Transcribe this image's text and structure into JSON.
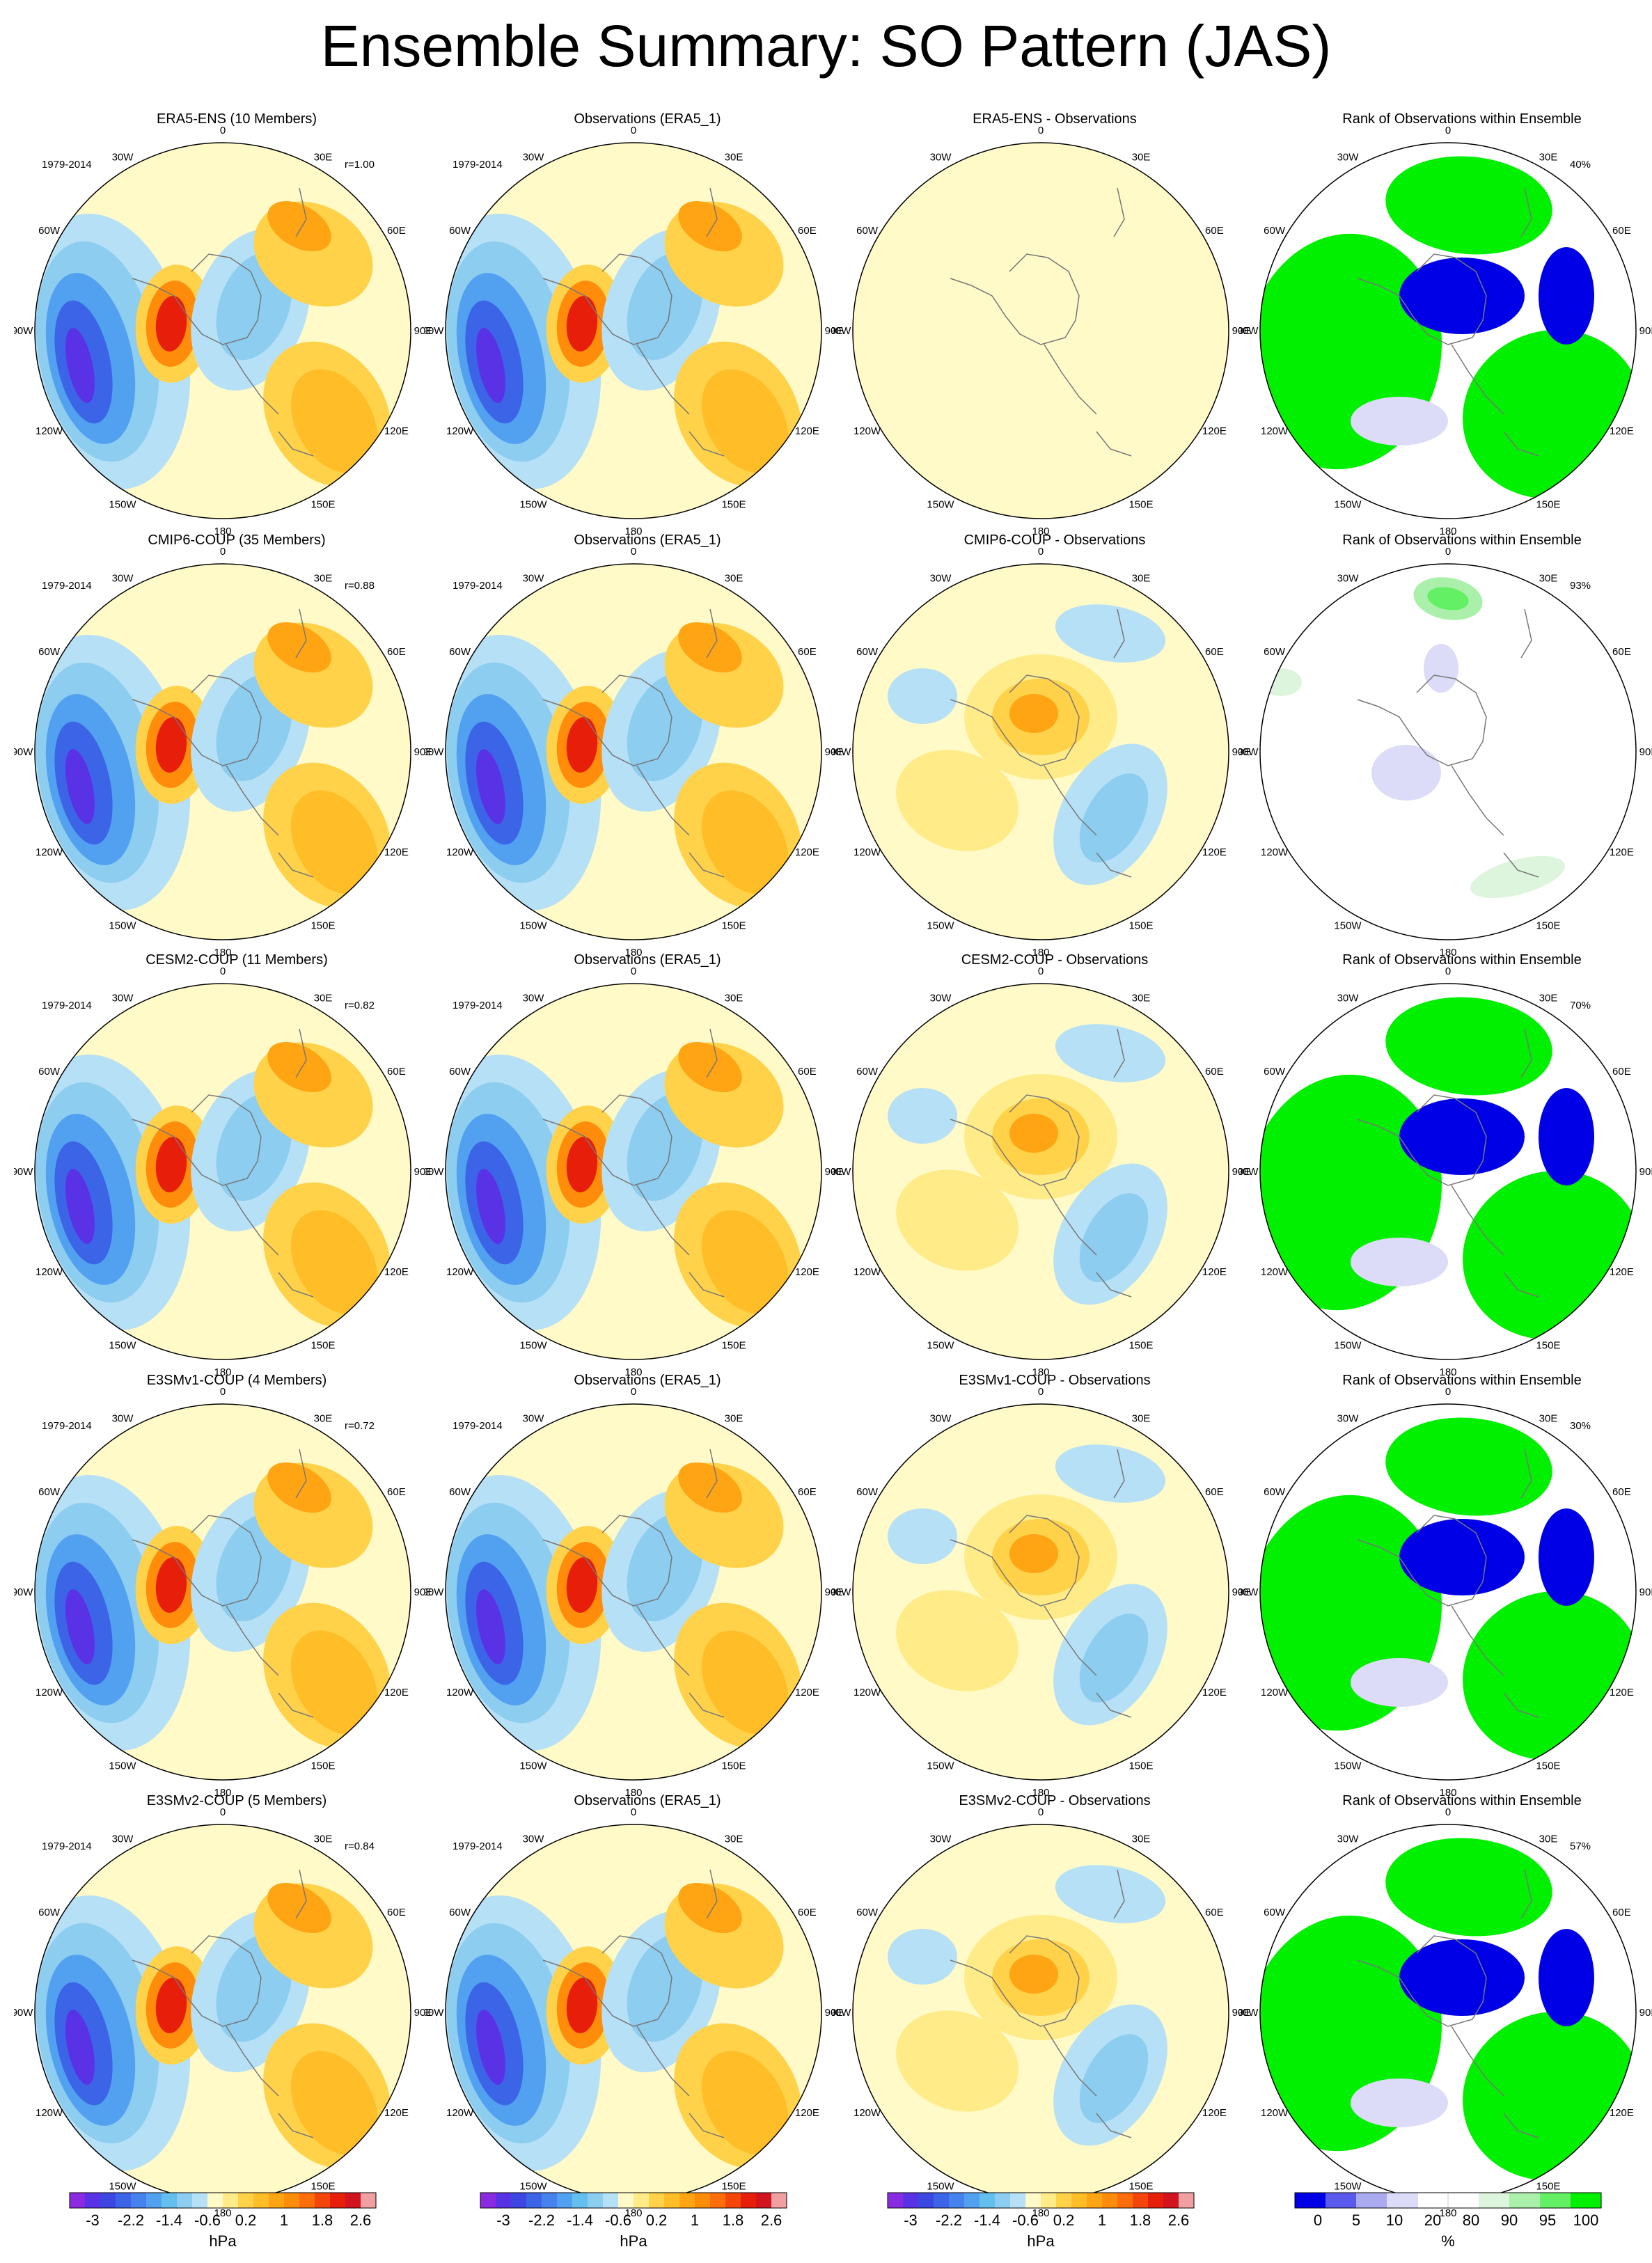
{
  "title": "Ensemble Summary: SO Pattern (JAS)",
  "longitude_labels": {
    "top": "0",
    "bottom": "180",
    "left_upper": "30W",
    "left_mid_upper": "60W",
    "left_mid": "90W",
    "left_mid_lower": "120W",
    "left_lower": "150W",
    "right_upper": "30E",
    "right_mid_upper": "60E",
    "right_mid": "90E",
    "right_mid_lower": "120E",
    "right_lower": "150E"
  },
  "rows": [
    {
      "panels": [
        {
          "title": "ERA5-ENS (10 Members)",
          "period": "1979-2014",
          "stat": "r=1.00",
          "type": "pattern"
        },
        {
          "title": "Observations (ERA5_1)",
          "period": "1979-2014",
          "stat": "",
          "type": "obs"
        },
        {
          "title": "ERA5-ENS - Observations",
          "period": "",
          "stat": "",
          "type": "diff_zero"
        },
        {
          "title": "Rank of Observations within Ensemble",
          "period": "",
          "stat": "40%",
          "type": "rank"
        }
      ]
    },
    {
      "panels": [
        {
          "title": "CMIP6-COUP (35 Members)",
          "period": "1979-2014",
          "stat": "r=0.88",
          "type": "pattern"
        },
        {
          "title": "Observations (ERA5_1)",
          "period": "1979-2014",
          "stat": "",
          "type": "obs"
        },
        {
          "title": "CMIP6-COUP - Observations",
          "period": "",
          "stat": "",
          "type": "diff"
        },
        {
          "title": "Rank of Observations within Ensemble",
          "period": "",
          "stat": "93%",
          "type": "rank_light"
        }
      ]
    },
    {
      "panels": [
        {
          "title": "CESM2-COUP (11 Members)",
          "period": "1979-2014",
          "stat": "r=0.82",
          "type": "pattern"
        },
        {
          "title": "Observations (ERA5_1)",
          "period": "1979-2014",
          "stat": "",
          "type": "obs"
        },
        {
          "title": "CESM2-COUP - Observations",
          "period": "",
          "stat": "",
          "type": "diff"
        },
        {
          "title": "Rank of Observations within Ensemble",
          "period": "",
          "stat": "70%",
          "type": "rank"
        }
      ]
    },
    {
      "panels": [
        {
          "title": "E3SMv1-COUP (4 Members)",
          "period": "1979-2014",
          "stat": "r=0.72",
          "type": "pattern"
        },
        {
          "title": "Observations (ERA5_1)",
          "period": "1979-2014",
          "stat": "",
          "type": "obs"
        },
        {
          "title": "E3SMv1-COUP - Observations",
          "period": "",
          "stat": "",
          "type": "diff"
        },
        {
          "title": "Rank of Observations within Ensemble",
          "period": "",
          "stat": "30%",
          "type": "rank"
        }
      ]
    },
    {
      "panels": [
        {
          "title": "E3SMv2-COUP (5 Members)",
          "period": "1979-2014",
          "stat": "r=0.84",
          "type": "pattern"
        },
        {
          "title": "Observations (ERA5_1)",
          "period": "1979-2014",
          "stat": "",
          "type": "obs"
        },
        {
          "title": "E3SMv2-COUP - Observations",
          "period": "",
          "stat": "",
          "type": "diff"
        },
        {
          "title": "Rank of Observations within Ensemble",
          "period": "",
          "stat": "57%",
          "type": "rank"
        }
      ]
    }
  ],
  "colorbars": [
    {
      "unit": "hPa",
      "tick_labels": [
        "-3",
        "-2.2",
        "-1.4",
        "-0.6",
        "0.2",
        "1",
        "1.8",
        "2.6"
      ],
      "colors": [
        "#8a2be2",
        "#5a32e6",
        "#3c46e0",
        "#3c64e6",
        "#4682ee",
        "#52a0f0",
        "#64beee",
        "#8ccdf0",
        "#b6e0f5",
        "#fffac8",
        "#ffeb87",
        "#ffd24a",
        "#ffbe28",
        "#ffa514",
        "#ff8c0a",
        "#ff6e0a",
        "#f5460a",
        "#e61e0a",
        "#d2141e",
        "#f0a0a0"
      ]
    },
    {
      "unit": "hPa",
      "tick_labels": [
        "-3",
        "-2.2",
        "-1.4",
        "-0.6",
        "0.2",
        "1",
        "1.8",
        "2.6"
      ],
      "colors": [
        "#8a2be2",
        "#5a32e6",
        "#3c46e0",
        "#3c64e6",
        "#4682ee",
        "#52a0f0",
        "#64beee",
        "#8ccdf0",
        "#b6e0f5",
        "#fffac8",
        "#ffeb87",
        "#ffd24a",
        "#ffbe28",
        "#ffa514",
        "#ff8c0a",
        "#ff6e0a",
        "#f5460a",
        "#e61e0a",
        "#d2141e",
        "#f0a0a0"
      ]
    },
    {
      "unit": "hPa",
      "tick_labels": [
        "-3",
        "-2.2",
        "-1.4",
        "-0.6",
        "0.2",
        "1",
        "1.8",
        "2.6"
      ],
      "colors": [
        "#8a2be2",
        "#5a32e6",
        "#3c46e0",
        "#3c64e6",
        "#4682ee",
        "#52a0f0",
        "#64beee",
        "#8ccdf0",
        "#b6e0f5",
        "#fffac8",
        "#ffeb87",
        "#ffd24a",
        "#ffbe28",
        "#ffa514",
        "#ff8c0a",
        "#ff6e0a",
        "#f5460a",
        "#e61e0a",
        "#d2141e",
        "#f0a0a0"
      ]
    },
    {
      "unit": "%",
      "tick_labels": [
        "0",
        "5",
        "10",
        "20",
        "80",
        "90",
        "95",
        "100"
      ],
      "colors": [
        "#0000e6",
        "#5a5aee",
        "#aaaaf0",
        "#dcdcf8",
        "#ffffff",
        "#ffffff",
        "#dcf5dc",
        "#aaf0aa",
        "#64f064",
        "#00f000"
      ]
    }
  ],
  "chart_data": {
    "type": "heatmap",
    "title": "Ensemble Summary: SO Pattern (JAS)",
    "projection": "south polar stereographic",
    "period": "1979-2014",
    "units": [
      "hPa",
      "%"
    ],
    "pattern_correlations": [
      {
        "ensemble": "ERA5-ENS",
        "members": 10,
        "r": 1.0,
        "rank_percent": 40
      },
      {
        "ensemble": "CMIP6-COUP",
        "members": 35,
        "r": 0.88,
        "rank_percent": 93
      },
      {
        "ensemble": "CESM2-COUP",
        "members": 11,
        "r": 0.82,
        "rank_percent": 70
      },
      {
        "ensemble": "E3SMv1-COUP",
        "members": 4,
        "r": 0.72,
        "rank_percent": 30
      },
      {
        "ensemble": "E3SMv2-COUP",
        "members": 5,
        "r": 0.84,
        "rank_percent": 57
      }
    ],
    "hPa_levels": [
      -3,
      -2.6,
      -2.2,
      -1.8,
      -1.4,
      -1,
      -0.6,
      -0.2,
      0.2,
      0.6,
      1,
      1.4,
      1.8,
      2.2,
      2.6,
      3
    ],
    "rank_levels": [
      0,
      5,
      10,
      20,
      80,
      90,
      95,
      100
    ]
  }
}
